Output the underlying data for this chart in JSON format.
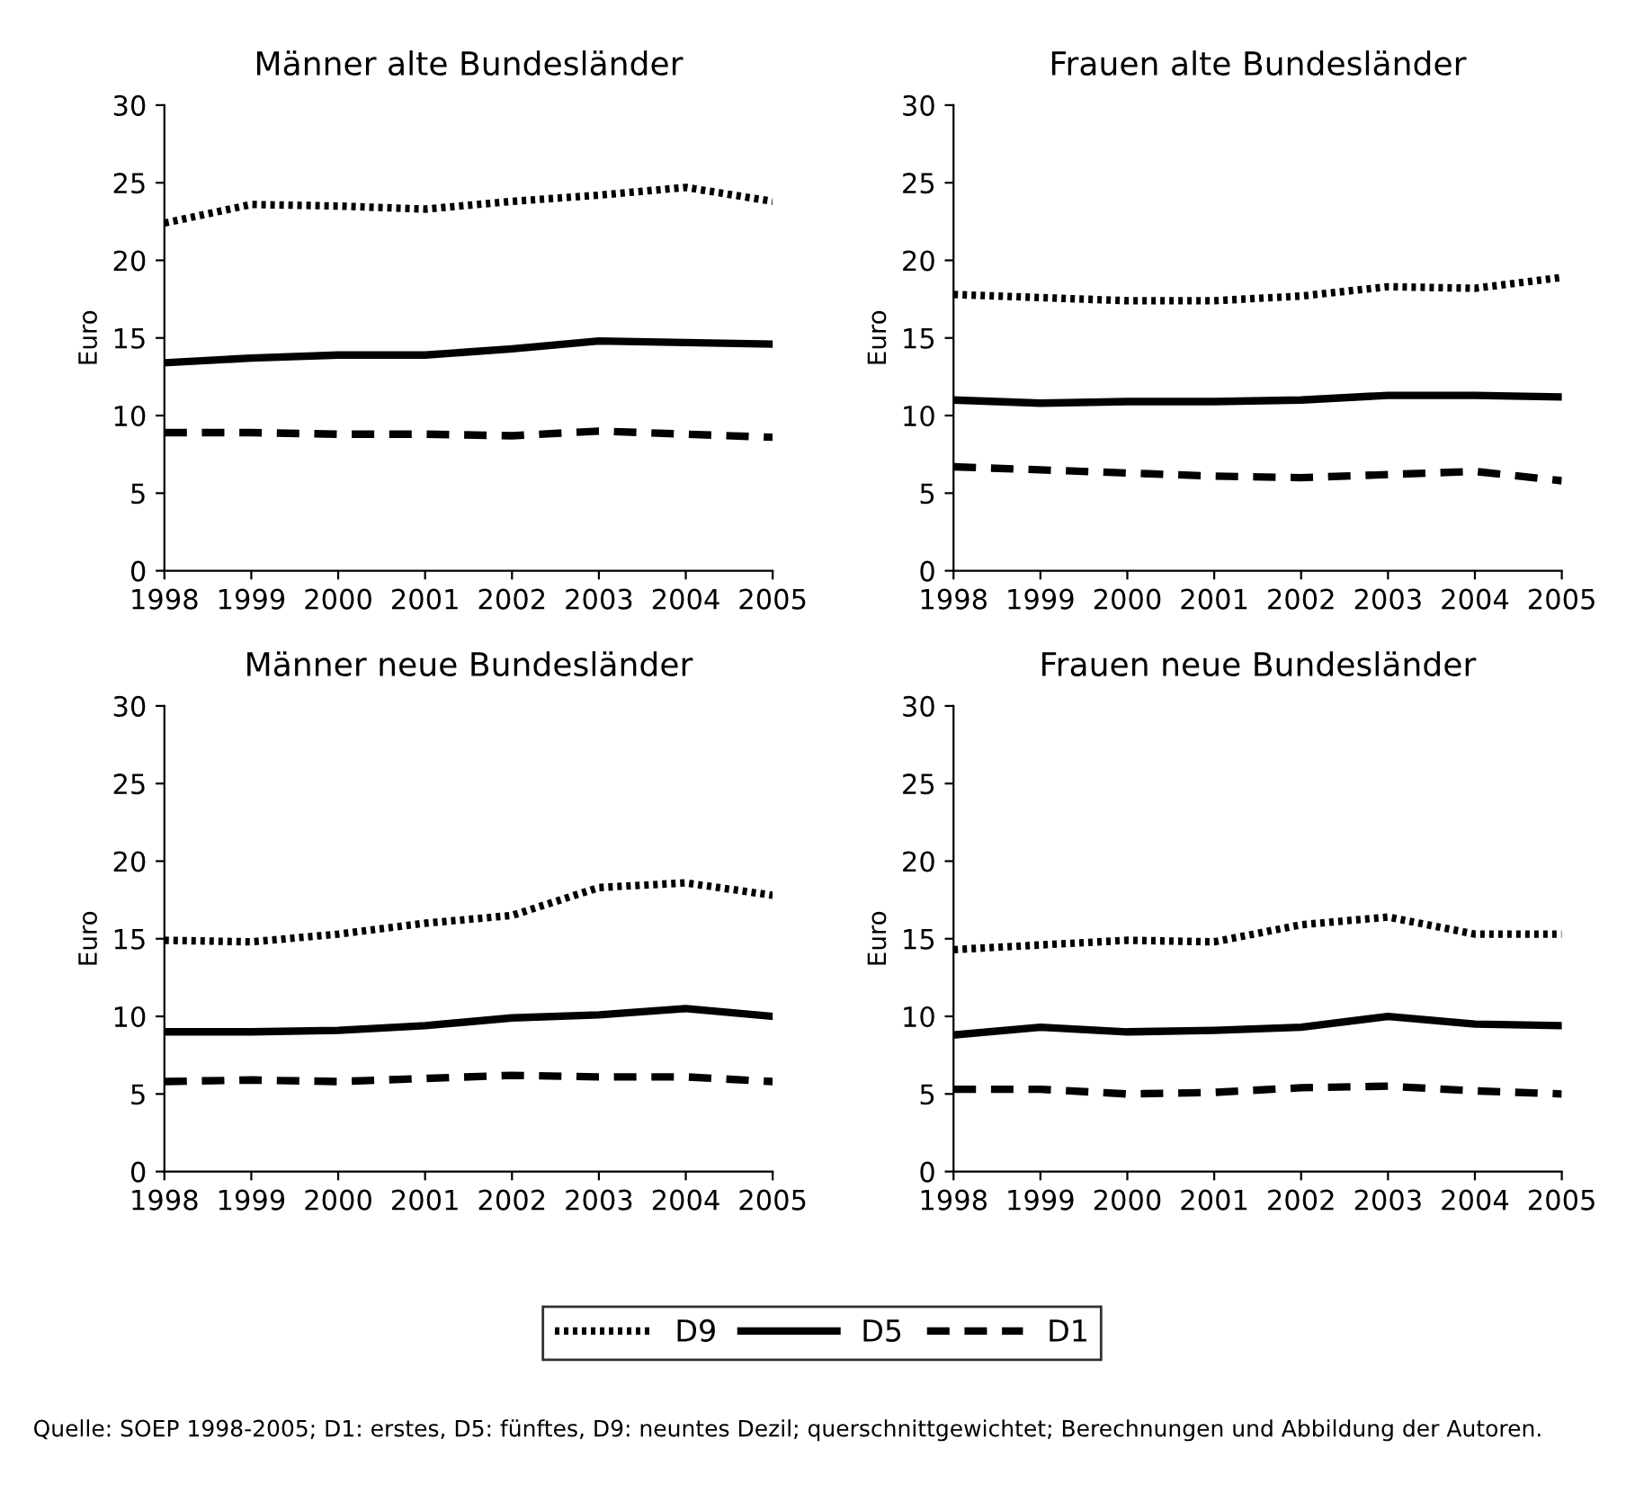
{
  "chart_data": [
    {
      "type": "line",
      "title": "Männer alte Bundesländer",
      "ylabel": "Euro",
      "categories": [
        "1998",
        "1999",
        "2000",
        "2001",
        "2002",
        "2003",
        "2004",
        "2005"
      ],
      "ylim": [
        0,
        30
      ],
      "yticks": [
        0,
        5,
        10,
        15,
        20,
        25,
        30
      ],
      "legend": "bottom",
      "series": [
        {
          "name": "D9",
          "color": "#000000",
          "line_style": "dotted",
          "values": [
            22.4,
            23.6,
            23.5,
            23.3,
            23.8,
            24.2,
            24.7,
            23.8
          ]
        },
        {
          "name": "D5",
          "color": "#000000",
          "line_style": "solid",
          "values": [
            13.4,
            13.7,
            13.9,
            13.9,
            14.3,
            14.8,
            14.7,
            14.6
          ]
        },
        {
          "name": "D1",
          "color": "#000000",
          "line_style": "dashed",
          "values": [
            8.9,
            8.9,
            8.8,
            8.8,
            8.7,
            9.0,
            8.8,
            8.6
          ]
        }
      ]
    },
    {
      "type": "line",
      "title": "Frauen alte Bundesländer",
      "ylabel": "Euro",
      "categories": [
        "1998",
        "1999",
        "2000",
        "2001",
        "2002",
        "2003",
        "2004",
        "2005"
      ],
      "ylim": [
        0,
        30
      ],
      "yticks": [
        0,
        5,
        10,
        15,
        20,
        25,
        30
      ],
      "legend": "bottom",
      "series": [
        {
          "name": "D9",
          "color": "#000000",
          "line_style": "dotted",
          "values": [
            17.8,
            17.6,
            17.4,
            17.4,
            17.7,
            18.3,
            18.2,
            18.9
          ]
        },
        {
          "name": "D5",
          "color": "#000000",
          "line_style": "solid",
          "values": [
            11.0,
            10.8,
            10.9,
            10.9,
            11.0,
            11.3,
            11.3,
            11.2
          ]
        },
        {
          "name": "D1",
          "color": "#000000",
          "line_style": "dashed",
          "values": [
            6.7,
            6.5,
            6.3,
            6.1,
            6.0,
            6.2,
            6.4,
            5.8
          ]
        }
      ]
    },
    {
      "type": "line",
      "title": "Männer neue Bundesländer",
      "ylabel": "Euro",
      "categories": [
        "1998",
        "1999",
        "2000",
        "2001",
        "2002",
        "2003",
        "2004",
        "2005"
      ],
      "ylim": [
        0,
        30
      ],
      "yticks": [
        0,
        5,
        10,
        15,
        20,
        25,
        30
      ],
      "legend": "bottom",
      "series": [
        {
          "name": "D9",
          "color": "#000000",
          "line_style": "dotted",
          "values": [
            14.9,
            14.8,
            15.3,
            16.0,
            16.5,
            18.3,
            18.6,
            17.8
          ]
        },
        {
          "name": "D5",
          "color": "#000000",
          "line_style": "solid",
          "values": [
            9.0,
            9.0,
            9.1,
            9.4,
            9.9,
            10.1,
            10.5,
            10.0
          ]
        },
        {
          "name": "D1",
          "color": "#000000",
          "line_style": "dashed",
          "values": [
            5.8,
            5.9,
            5.8,
            6.0,
            6.2,
            6.1,
            6.1,
            5.8
          ]
        }
      ]
    },
    {
      "type": "line",
      "title": "Frauen neue Bundesländer",
      "ylabel": "Euro",
      "categories": [
        "1998",
        "1999",
        "2000",
        "2001",
        "2002",
        "2003",
        "2004",
        "2005"
      ],
      "ylim": [
        0,
        30
      ],
      "yticks": [
        0,
        5,
        10,
        15,
        20,
        25,
        30
      ],
      "legend": "bottom",
      "annotations": [
        "Quelle: SOEP 1998-2005; D1: erstes, D5: fünftes, D9: neuntes Dezil; querschnittgewichtet; Berechnungen und Abbildung der Autoren."
      ],
      "series": [
        {
          "name": "D9",
          "color": "#000000",
          "line_style": "dotted",
          "values": [
            14.3,
            14.6,
            14.9,
            14.8,
            15.9,
            16.4,
            15.3,
            15.3
          ]
        },
        {
          "name": "D5",
          "color": "#000000",
          "line_style": "solid",
          "values": [
            8.8,
            9.3,
            9.0,
            9.1,
            9.3,
            10.0,
            9.5,
            9.4
          ]
        },
        {
          "name": "D1",
          "color": "#000000",
          "line_style": "dashed",
          "values": [
            5.3,
            5.3,
            5.0,
            5.1,
            5.4,
            5.5,
            5.2,
            5.0
          ]
        }
      ]
    }
  ]
}
